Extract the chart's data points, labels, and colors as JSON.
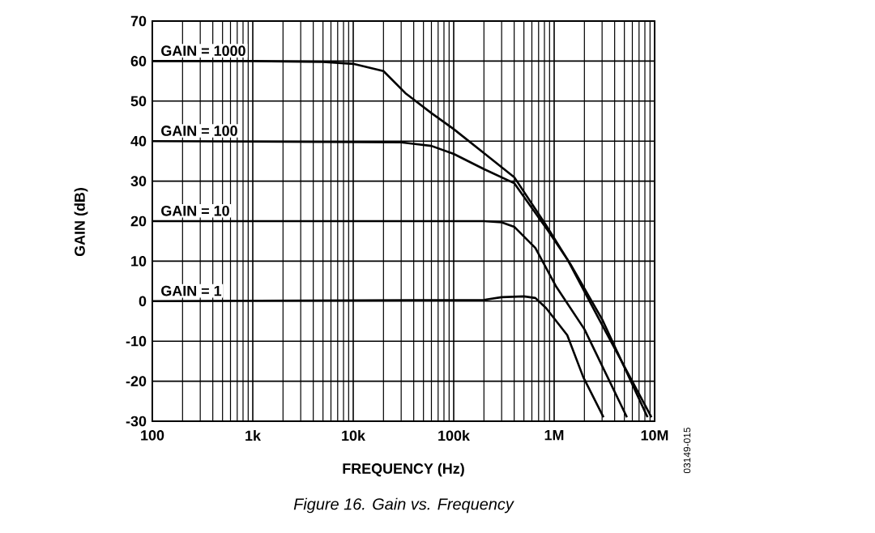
{
  "chart_data": {
    "type": "line",
    "title": "Figure 16. Gain vs. Frequency",
    "xlabel": "FREQUENCY (Hz)",
    "ylabel": "GAIN (dB)",
    "annotations": [
      "03149-015"
    ],
    "log": "x",
    "grid": "both",
    "marker": "none",
    "line_style": "solid",
    "xlim": [
      100,
      10000000
    ],
    "ylim": [
      -30,
      70
    ],
    "xticks": [
      100,
      {
        "value": 1000,
        "label": "1k"
      },
      {
        "value": 10000,
        "label": "10k"
      },
      {
        "value": 100000,
        "label": "100k"
      },
      {
        "value": 1000000,
        "label": "1M"
      },
      {
        "value": 10000000,
        "label": "10M"
      }
    ],
    "yticks": [
      -30,
      -20,
      -10,
      0,
      10,
      20,
      30,
      40,
      50,
      60,
      70
    ],
    "series": [
      {
        "name": "GAIN = 1000",
        "color": "#000000",
        "x": [
          100,
          1000,
          5000,
          10000,
          20000,
          33000,
          60000,
          100000,
          200000,
          400000,
          830000,
          1350000,
          2800000,
          9300000
        ],
        "values": [
          60,
          60,
          59.8,
          59.3,
          57.5,
          52,
          47,
          43,
          37,
          31,
          19,
          10.5,
          -4.5,
          -29
        ]
      },
      {
        "name": "GAIN = 100",
        "color": "#000000",
        "x": [
          100,
          30000,
          60000,
          100000,
          200000,
          400000,
          880000,
          1450000,
          3000000,
          8500000
        ],
        "values": [
          40,
          39.7,
          38.8,
          36.8,
          33,
          29.5,
          17.4,
          9.3,
          -4.5,
          -29
        ]
      },
      {
        "name": "GAIN = 10",
        "color": "#000000",
        "x": [
          100,
          200000,
          300000,
          400000,
          650000,
          1050000,
          2000000,
          5300000
        ],
        "values": [
          20,
          20,
          19.7,
          18.6,
          13.3,
          3.6,
          -7,
          -29
        ]
      },
      {
        "name": "GAIN = 1",
        "color": "#000000",
        "x": [
          100,
          200000,
          300000,
          500000,
          650000,
          830000,
          1350000,
          1950000,
          3100000
        ],
        "values": [
          0,
          0.3,
          1,
          1.2,
          0.8,
          -1.7,
          -8.5,
          -19,
          -29
        ]
      }
    ]
  }
}
